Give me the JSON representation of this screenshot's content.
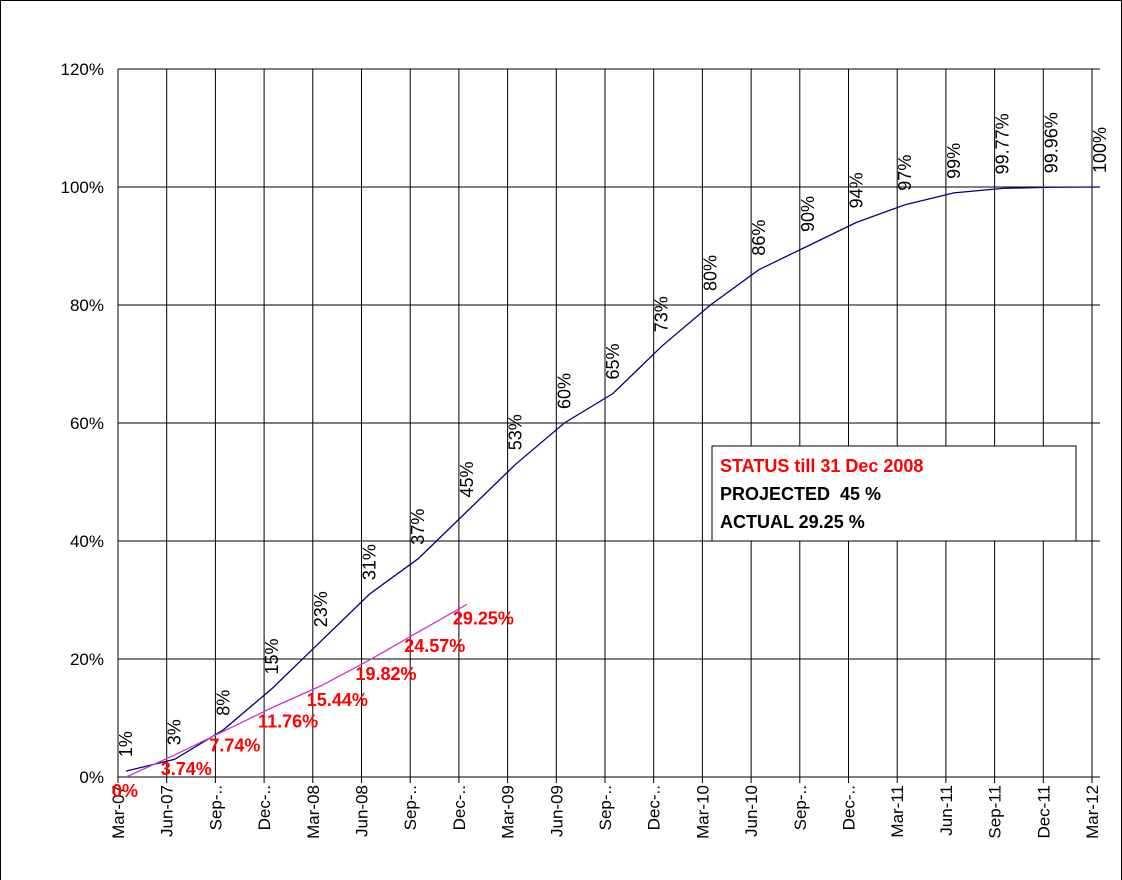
{
  "chart_data": {
    "type": "line",
    "categories": [
      "Mar-07",
      "Jun-07",
      "Sep-..",
      "Dec-..",
      "Mar-08",
      "Jun-08",
      "Sep-..",
      "Dec-..",
      "Mar-09",
      "Jun-09",
      "Sep-..",
      "Dec-..",
      "Mar-10",
      "Jun-10",
      "Sep-..",
      "Dec-..",
      "Mar-11",
      "Jun-11",
      "Sep-11",
      "Dec-11",
      "Mar-12"
    ],
    "series": [
      {
        "name": "Projected",
        "color": "#000080",
        "values": [
          1,
          3,
          8,
          15,
          23,
          31,
          37,
          45,
          53,
          60,
          65,
          73,
          80,
          86,
          90,
          94,
          97,
          99,
          99.77,
          99.96,
          100
        ],
        "value_labels": [
          "1%",
          "3%",
          "8%",
          "15%",
          "23%",
          "31%",
          "37%",
          "45%",
          "53%",
          "60%",
          "65%",
          "73%",
          "80%",
          "86%",
          "90%",
          "94%",
          "97%",
          "99%",
          "99.77%",
          "99.96%",
          "100%"
        ]
      },
      {
        "name": "Actual",
        "color": "#cc33cc",
        "values": [
          0,
          3.74,
          7.74,
          11.76,
          15.44,
          19.82,
          24.57,
          29.25,
          null,
          null,
          null,
          null,
          null,
          null,
          null,
          null,
          null,
          null,
          null,
          null,
          null
        ],
        "value_labels": [
          "0%",
          "3.74%",
          "7.74%",
          "11.76%",
          "15.44%",
          "19.82%",
          "24.57%",
          "29.25%",
          null,
          null,
          null,
          null,
          null,
          null,
          null,
          null,
          null,
          null,
          null,
          null,
          null
        ]
      }
    ],
    "ylim": [
      0,
      120
    ],
    "yticks": [
      {
        "value": 0,
        "label": "0%"
      },
      {
        "value": 20,
        "label": "20%"
      },
      {
        "value": 40,
        "label": "40%"
      },
      {
        "value": 60,
        "label": "60%"
      },
      {
        "value": 80,
        "label": "80%"
      },
      {
        "value": 100,
        "label": "100%"
      },
      {
        "value": 120,
        "label": "120%"
      }
    ],
    "grid": true,
    "annotation": {
      "title": "STATUS till 31 Dec 2008",
      "lines": [
        "PROJECTED  45 %",
        "ACTUAL 29.25 %"
      ]
    }
  }
}
